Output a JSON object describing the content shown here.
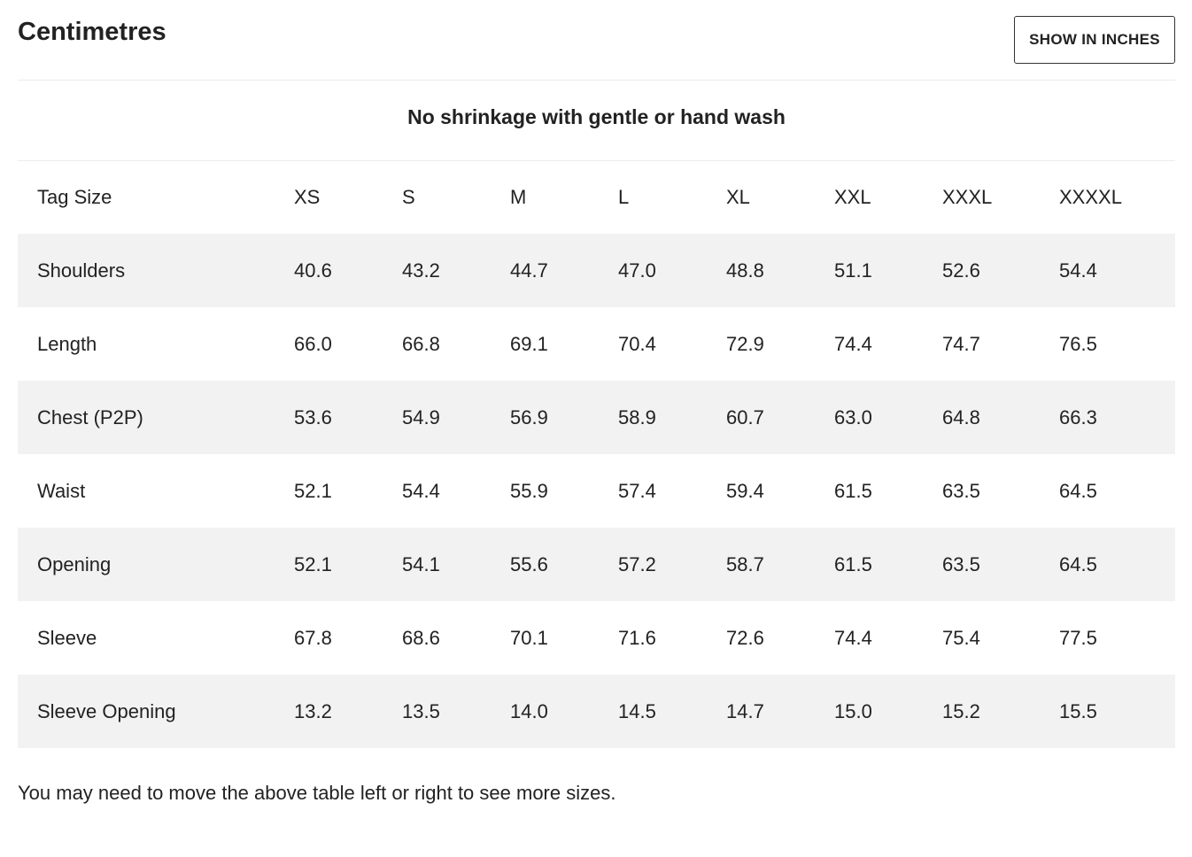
{
  "header": {
    "title": "Centimetres",
    "toggle_label": "SHOW IN INCHES"
  },
  "subtitle": "No shrinkage with gentle or hand wash",
  "table": {
    "row_header": "Tag Size",
    "sizes": [
      "XS",
      "S",
      "M",
      "L",
      "XL",
      "XXL",
      "XXXL",
      "XXXXL"
    ],
    "rows": [
      {
        "label": "Shoulders",
        "values": [
          "40.6",
          "43.2",
          "44.7",
          "47.0",
          "48.8",
          "51.1",
          "52.6",
          "54.4"
        ]
      },
      {
        "label": "Length",
        "values": [
          "66.0",
          "66.8",
          "69.1",
          "70.4",
          "72.9",
          "74.4",
          "74.7",
          "76.5"
        ]
      },
      {
        "label": "Chest (P2P)",
        "values": [
          "53.6",
          "54.9",
          "56.9",
          "58.9",
          "60.7",
          "63.0",
          "64.8",
          "66.3"
        ]
      },
      {
        "label": "Waist",
        "values": [
          "52.1",
          "54.4",
          "55.9",
          "57.4",
          "59.4",
          "61.5",
          "63.5",
          "64.5"
        ]
      },
      {
        "label": "Opening",
        "values": [
          "52.1",
          "54.1",
          "55.6",
          "57.2",
          "58.7",
          "61.5",
          "63.5",
          "64.5"
        ]
      },
      {
        "label": "Sleeve",
        "values": [
          "67.8",
          "68.6",
          "70.1",
          "71.6",
          "72.6",
          "74.4",
          "75.4",
          "77.5"
        ]
      },
      {
        "label": "Sleeve Opening",
        "values": [
          "13.2",
          "13.5",
          "14.0",
          "14.5",
          "14.7",
          "15.0",
          "15.2",
          "15.5"
        ]
      }
    ]
  },
  "note": "You may need to move the above table left or right to see more sizes."
}
